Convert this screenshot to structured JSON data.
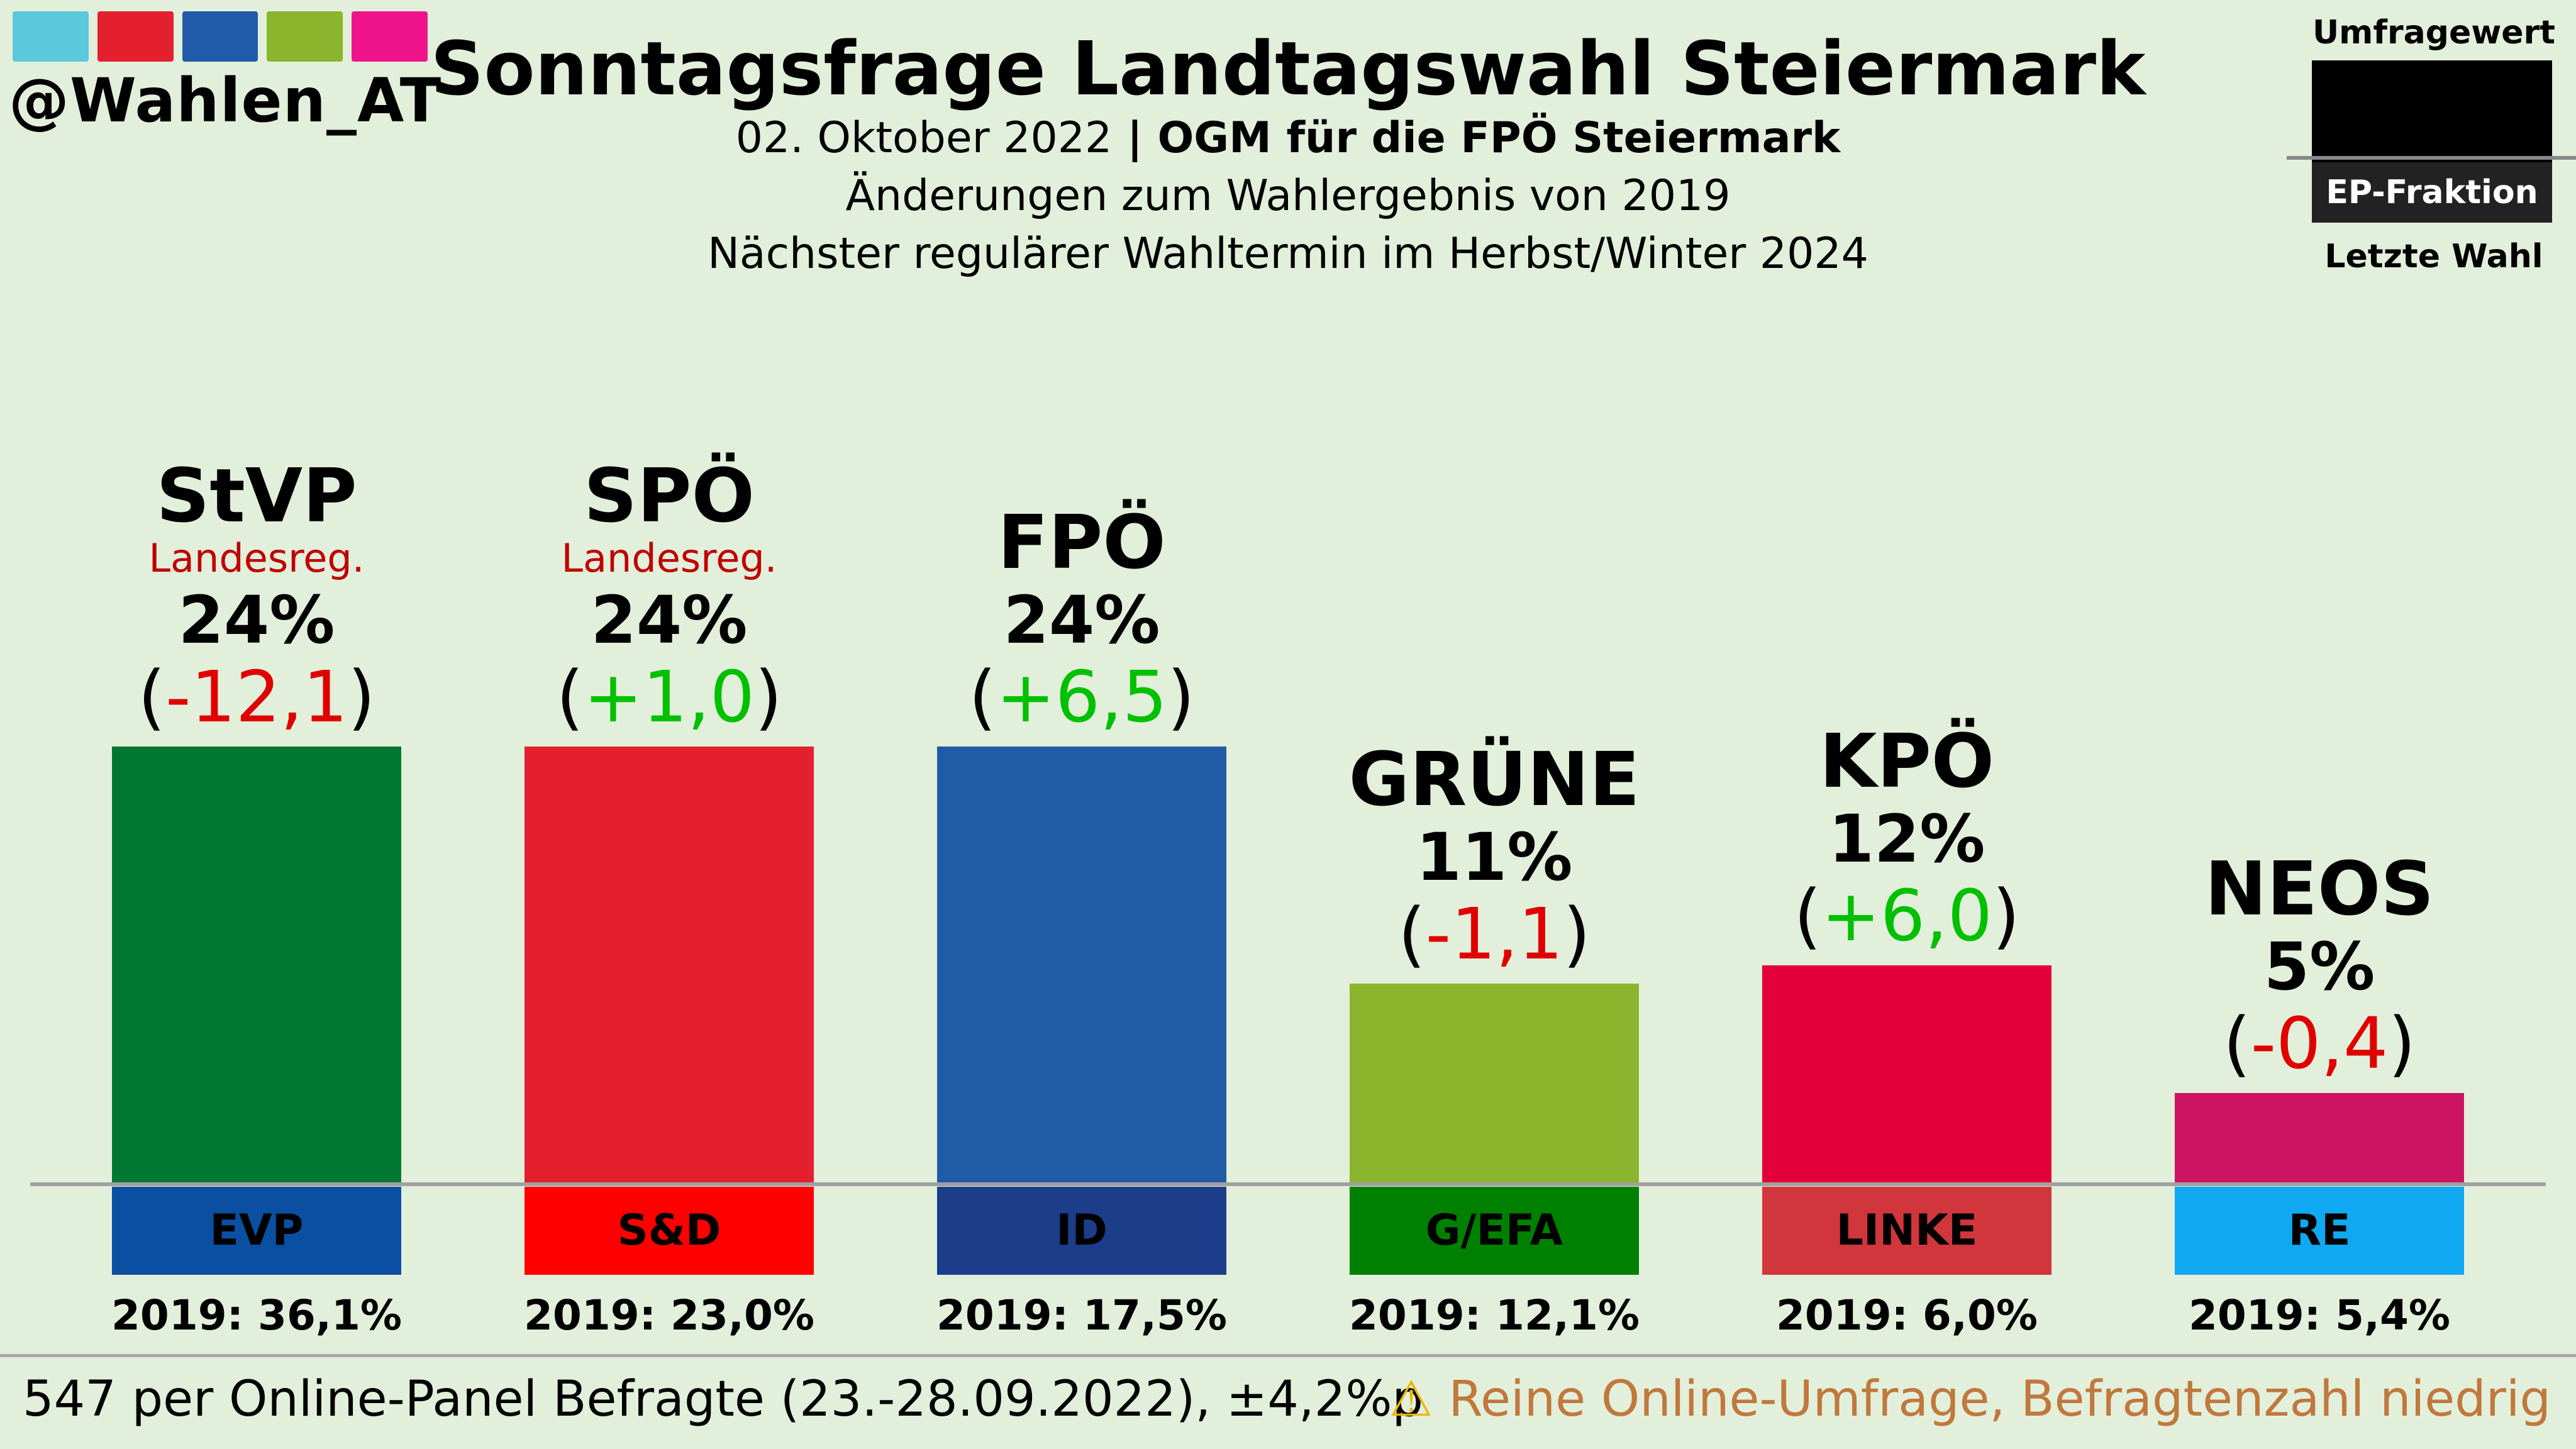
{
  "branding": {
    "handle": "@Wahlen_AT",
    "logo_colors": [
      "#5bc8dc",
      "#e4202e",
      "#1f5ba8",
      "#8ab52c",
      "#f0148c"
    ]
  },
  "header": {
    "title": "Sonntagsfrage Landtagswahl Steiermark",
    "date": "02. Oktober 2022",
    "separator": " | ",
    "institute": "OGM für die FPÖ Steiermark",
    "changes_note": "Änderungen zum Wahlergebnis von 2019",
    "next_election": "Nächster regulärer Wahltermin im Herbst/Winter 2024"
  },
  "legend": {
    "poll_label": "Umfragewert",
    "faction_label": "EP-Fraktion",
    "last_label": "Letzte Wahl"
  },
  "chart_data": {
    "type": "bar",
    "title": "Sonntagsfrage Landtagswahl Steiermark",
    "xlabel": "",
    "ylabel": "",
    "ylim": [
      0,
      25
    ],
    "categories": [
      "StVP",
      "SPÖ",
      "FPÖ",
      "GRÜNE",
      "KPÖ",
      "NEOS"
    ],
    "values": [
      24,
      24,
      24,
      11,
      12,
      5
    ],
    "value_labels": [
      "24%",
      "24%",
      "24%",
      "11%",
      "12%",
      "5%"
    ],
    "changes": [
      -12.1,
      1.0,
      6.5,
      -1.1,
      6.0,
      -0.4
    ],
    "change_labels": [
      "-12,1",
      "+1,0",
      "+6,5",
      "-1,1",
      "+6,0",
      "-0,4"
    ],
    "government_note": [
      "Landesreg.",
      "Landesreg.",
      "",
      "",
      "",
      ""
    ],
    "bar_colors": [
      "#007831",
      "#e4202e",
      "#205ca5",
      "#8ab52c",
      "#e3003a",
      "#cc1462"
    ],
    "factions": [
      "EVP",
      "S&D",
      "ID",
      "G/EFA",
      "LINKE",
      "RE"
    ],
    "faction_colors": [
      "#0a4fa1",
      "#ff0000",
      "#1b3d8a",
      "#008000",
      "#d0363c",
      "#10a8f0"
    ],
    "last_election": [
      "2019: 36,1%",
      "2019: 23,0%",
      "2019: 17,5%",
      "2019: 12,1%",
      "2019: 6,0%",
      "2019: 5,4%"
    ],
    "positive_color": "#00c000",
    "negative_color": "#e00000"
  },
  "footer": {
    "sample": "547 per Online-Panel Befragte (23.-28.09.2022), ±4,2%p",
    "warning_icon": "⚠",
    "warning": "Reine Online-Umfrage, Befragtenzahl niedrig"
  }
}
